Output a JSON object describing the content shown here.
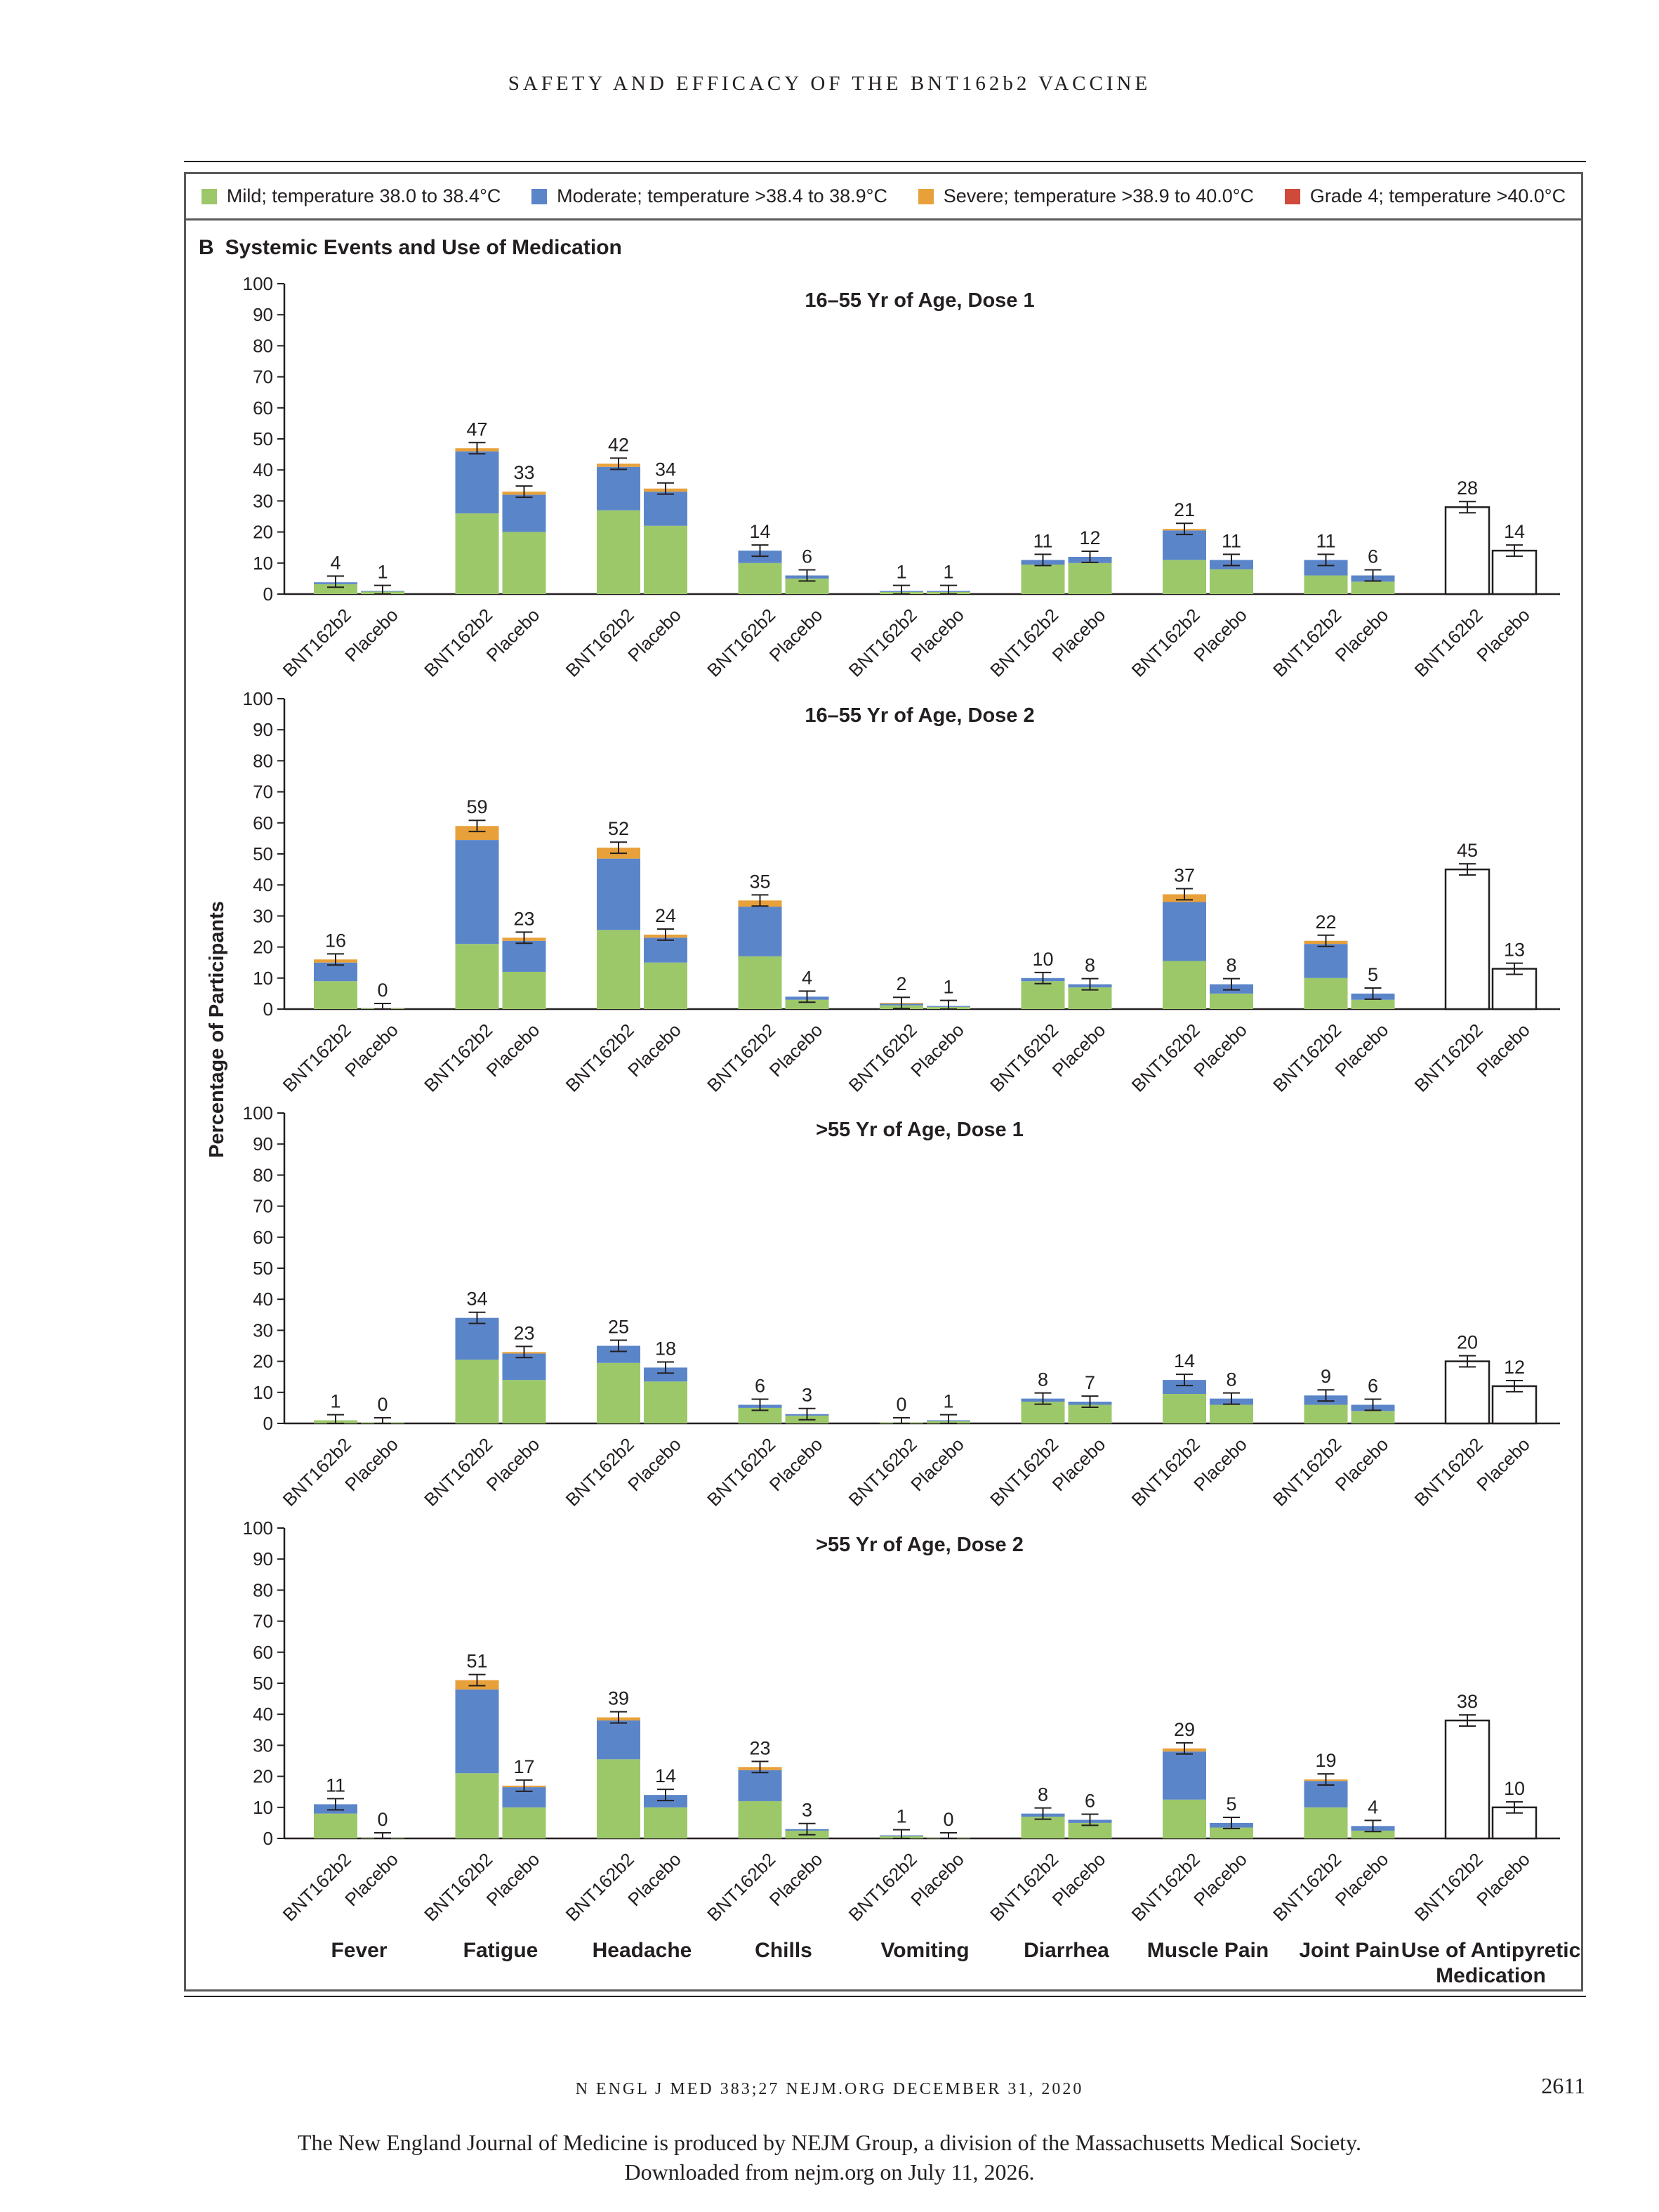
{
  "header": {
    "running_head": "SAFETY AND EFFICACY OF THE BNT162b2 VACCINE"
  },
  "legend": [
    {
      "label": "Mild; temperature 38.0 to 38.4°C",
      "color": "#9cc86a"
    },
    {
      "label": "Moderate; temperature >38.4 to 38.9°C",
      "color": "#5b85c9"
    },
    {
      "label": "Severe; temperature >38.9 to 40.0°C",
      "color": "#e8a13a"
    },
    {
      "label": "Grade 4; temperature >40.0°C",
      "color": "#cf4a3b"
    }
  ],
  "panel": {
    "letter": "B",
    "title": "Systemic Events and Use of Medication"
  },
  "chart_data": {
    "type": "bar",
    "stacked": true,
    "ylabel": "Percentage of Participants",
    "ylim": [
      0,
      100
    ],
    "yticks": [
      0,
      10,
      20,
      30,
      40,
      50,
      60,
      70,
      80,
      90,
      100
    ],
    "groups": [
      "Fever",
      "Fatigue",
      "Headache",
      "Chills",
      "Vomiting",
      "Diarrhea",
      "Muscle Pain",
      "Joint Pain",
      "Use of Antipyretic Medication"
    ],
    "bar_labels": [
      "BNT162b2",
      "Placebo"
    ],
    "series_names": [
      "Mild",
      "Moderate",
      "Severe",
      "Grade 4"
    ],
    "panels": [
      {
        "title": "16–55 Yr of Age, Dose 1",
        "totals": [
          [
            4,
            1
          ],
          [
            47,
            33
          ],
          [
            42,
            34
          ],
          [
            14,
            6
          ],
          [
            1,
            1
          ],
          [
            11,
            12
          ],
          [
            21,
            11
          ],
          [
            11,
            6
          ],
          [
            28,
            14
          ]
        ],
        "stacks": [
          [
            [
              3.2,
              0.6,
              0,
              0
            ],
            [
              0.8,
              0.2,
              0,
              0
            ]
          ],
          [
            [
              26,
              20,
              1,
              0
            ],
            [
              20,
              12,
              1,
              0
            ]
          ],
          [
            [
              27,
              14,
              1,
              0
            ],
            [
              22,
              11,
              1,
              0
            ]
          ],
          [
            [
              10,
              4,
              0,
              0
            ],
            [
              5,
              1,
              0,
              0
            ]
          ],
          [
            [
              0.7,
              0.3,
              0,
              0
            ],
            [
              0.7,
              0.3,
              0,
              0
            ]
          ],
          [
            [
              9.5,
              1.5,
              0,
              0
            ],
            [
              10,
              2,
              0,
              0
            ]
          ],
          [
            [
              11,
              9.5,
              0.5,
              0
            ],
            [
              8,
              3,
              0,
              0
            ]
          ],
          [
            [
              6,
              5,
              0,
              0
            ],
            [
              4,
              2,
              0,
              0
            ]
          ],
          [
            [
              28,
              0,
              0,
              0
            ],
            [
              14,
              0,
              0,
              0
            ]
          ]
        ]
      },
      {
        "title": "16–55 Yr of Age, Dose 2",
        "totals": [
          [
            16,
            0
          ],
          [
            59,
            23
          ],
          [
            52,
            24
          ],
          [
            35,
            4
          ],
          [
            2,
            1
          ],
          [
            10,
            8
          ],
          [
            37,
            8
          ],
          [
            22,
            5
          ],
          [
            45,
            13
          ]
        ],
        "stacks": [
          [
            [
              9,
              6,
              1,
              0
            ],
            [
              0.2,
              0,
              0,
              0
            ]
          ],
          [
            [
              21,
              33.5,
              4.5,
              0
            ],
            [
              12,
              10,
              1,
              0
            ]
          ],
          [
            [
              25.5,
              23,
              3.5,
              0
            ],
            [
              15,
              8,
              1,
              0
            ]
          ],
          [
            [
              17,
              16,
              2,
              0
            ],
            [
              3,
              1,
              0,
              0
            ]
          ],
          [
            [
              1.2,
              0.5,
              0.3,
              0
            ],
            [
              0.7,
              0.3,
              0,
              0
            ]
          ],
          [
            [
              9,
              1,
              0,
              0
            ],
            [
              7,
              1,
              0,
              0
            ]
          ],
          [
            [
              15.5,
              19,
              2.5,
              0
            ],
            [
              5,
              3,
              0,
              0
            ]
          ],
          [
            [
              10,
              11,
              1,
              0
            ],
            [
              3,
              2,
              0,
              0
            ]
          ],
          [
            [
              45,
              0,
              0,
              0
            ],
            [
              13,
              0,
              0,
              0
            ]
          ]
        ]
      },
      {
        "title": ">55 Yr of Age, Dose 1",
        "totals": [
          [
            1,
            0
          ],
          [
            34,
            23
          ],
          [
            25,
            18
          ],
          [
            6,
            3
          ],
          [
            0,
            1
          ],
          [
            8,
            7
          ],
          [
            14,
            8
          ],
          [
            9,
            6
          ],
          [
            20,
            12
          ]
        ],
        "stacks": [
          [
            [
              1,
              0,
              0,
              0
            ],
            [
              0.3,
              0,
              0,
              0
            ]
          ],
          [
            [
              20.5,
              13.5,
              0,
              0
            ],
            [
              14,
              8.5,
              0.5,
              0
            ]
          ],
          [
            [
              19.5,
              5.5,
              0,
              0
            ],
            [
              13.5,
              4.5,
              0,
              0
            ]
          ],
          [
            [
              5,
              1,
              0,
              0
            ],
            [
              2.5,
              0.5,
              0,
              0
            ]
          ],
          [
            [
              0.3,
              0,
              0,
              0
            ],
            [
              0.7,
              0.3,
              0,
              0
            ]
          ],
          [
            [
              7,
              1,
              0,
              0
            ],
            [
              6,
              1,
              0,
              0
            ]
          ],
          [
            [
              9.5,
              4.5,
              0,
              0
            ],
            [
              6,
              2,
              0,
              0
            ]
          ],
          [
            [
              6,
              3,
              0,
              0
            ],
            [
              4,
              2,
              0,
              0
            ]
          ],
          [
            [
              20,
              0,
              0,
              0
            ],
            [
              12,
              0,
              0,
              0
            ]
          ]
        ]
      },
      {
        "title": ">55 Yr of Age, Dose 2",
        "totals": [
          [
            11,
            0
          ],
          [
            51,
            17
          ],
          [
            39,
            14
          ],
          [
            23,
            3
          ],
          [
            1,
            0
          ],
          [
            8,
            6
          ],
          [
            29,
            5
          ],
          [
            19,
            4
          ],
          [
            38,
            10
          ]
        ],
        "stacks": [
          [
            [
              8,
              3,
              0,
              0
            ],
            [
              0.2,
              0,
              0,
              0
            ]
          ],
          [
            [
              21,
              27,
              3,
              0
            ],
            [
              10,
              6.5,
              0.5,
              0
            ]
          ],
          [
            [
              25.5,
              12.5,
              1,
              0
            ],
            [
              10,
              4,
              0,
              0
            ]
          ],
          [
            [
              12,
              10,
              1,
              0
            ],
            [
              2.5,
              0.5,
              0,
              0
            ]
          ],
          [
            [
              0.7,
              0.3,
              0,
              0
            ],
            [
              0.2,
              0,
              0,
              0
            ]
          ],
          [
            [
              7,
              1,
              0,
              0
            ],
            [
              5,
              1,
              0,
              0
            ]
          ],
          [
            [
              12.5,
              15.5,
              1,
              0
            ],
            [
              3.5,
              1.5,
              0,
              0
            ]
          ],
          [
            [
              10,
              8.5,
              0.5,
              0
            ],
            [
              2.5,
              1.5,
              0,
              0
            ]
          ],
          [
            [
              38,
              0,
              0,
              0
            ],
            [
              10,
              0,
              0,
              0
            ]
          ]
        ]
      }
    ]
  },
  "footer": {
    "citation": "N ENGL J MED 383;27   NEJM.ORG   DECEMBER 31, 2020",
    "page_number": "2611",
    "note_line1": "The New England Journal of Medicine is produced by NEJM Group, a division of the Massachusetts Medical Society.",
    "note_line2": "Downloaded from nejm.org on July 11, 2026."
  }
}
